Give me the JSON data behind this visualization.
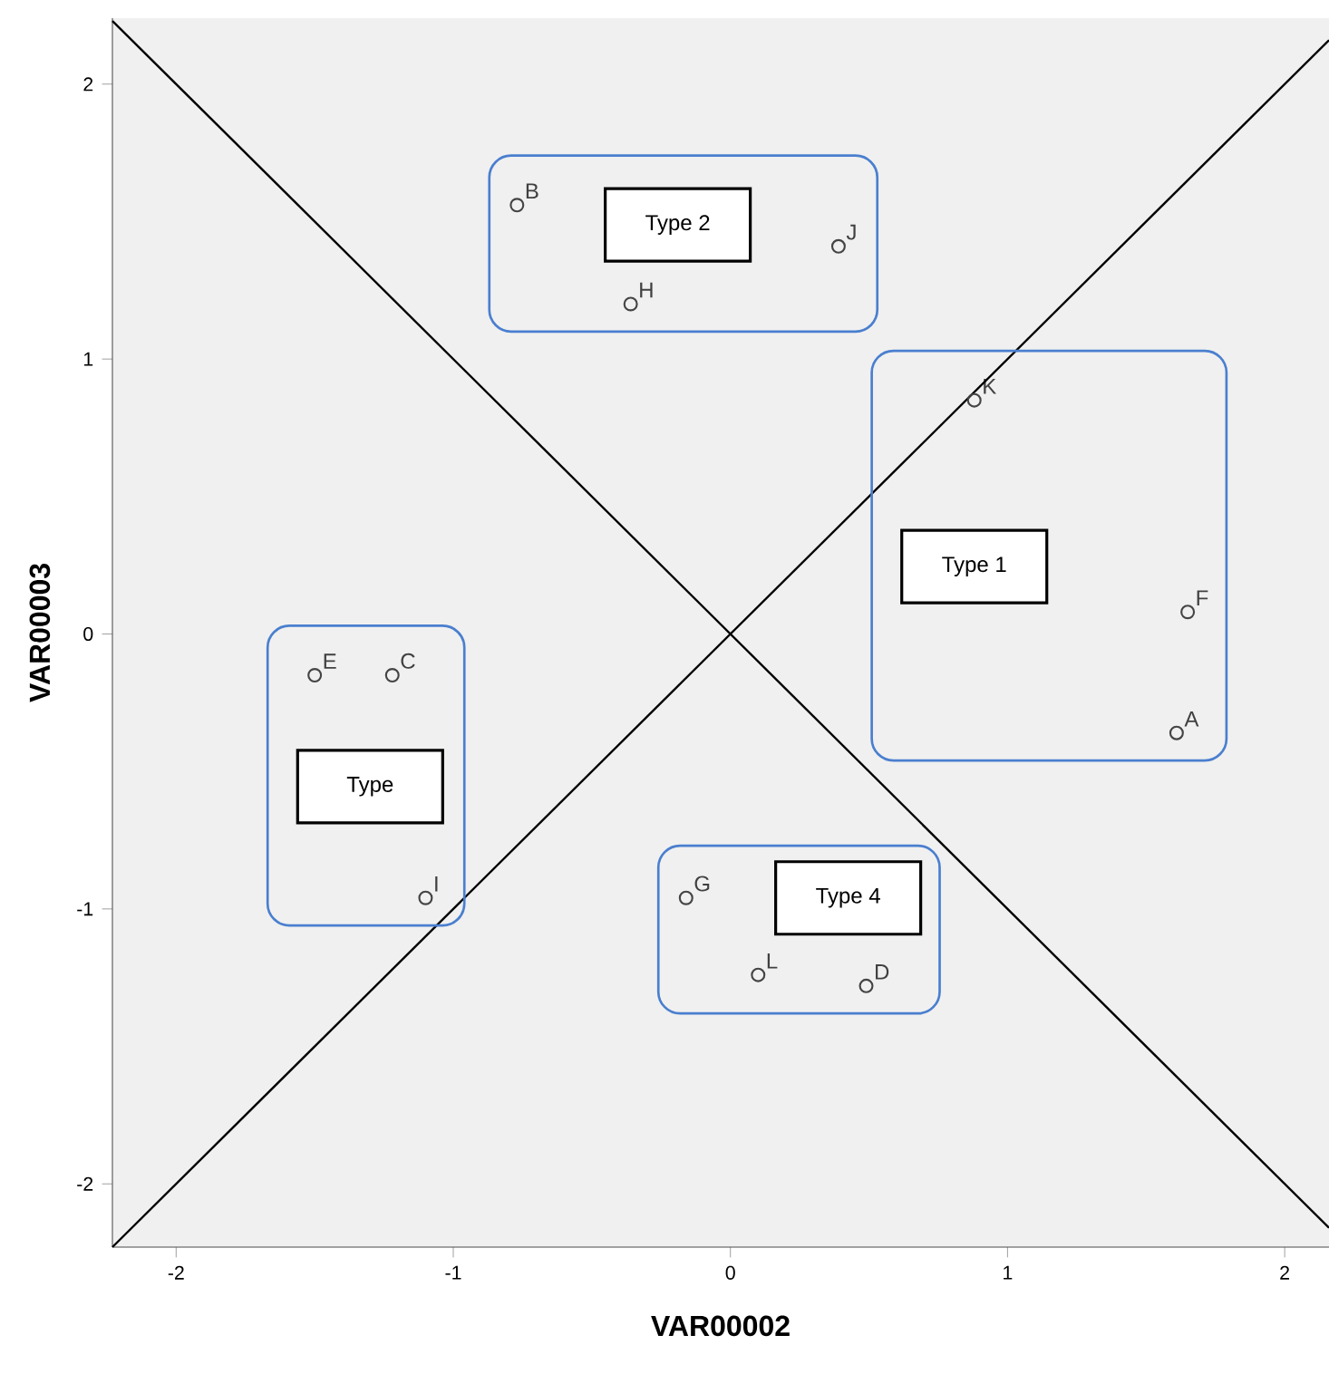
{
  "chart_data": {
    "type": "scatter",
    "xlabel": "VAR00002",
    "ylabel": "VAR00003",
    "xlim": [
      -2.23,
      2.16
    ],
    "ylim": [
      -2.23,
      2.24
    ],
    "xticks": [
      -2,
      -1,
      0,
      1,
      2
    ],
    "yticks": [
      -2,
      -1,
      0,
      1,
      2
    ],
    "marker": "circle",
    "grid": false,
    "series": [
      {
        "color": "#444444",
        "x": [
          1.61,
          -0.77,
          -1.22,
          0.49,
          -1.5,
          1.65,
          -0.16,
          -0.36,
          -1.1,
          0.39,
          0.88,
          0.1
        ],
        "values": [
          -0.36,
          1.56,
          -0.15,
          -1.28,
          -0.15,
          0.08,
          -0.96,
          1.2,
          -0.96,
          1.41,
          0.85,
          -1.24
        ],
        "value_labels": [
          "A",
          "B",
          "C",
          "D",
          "E",
          "F",
          "G",
          "H",
          "I",
          "J",
          "K",
          "L"
        ]
      },
      {
        "type": "line",
        "color": "#000000",
        "marker": "none",
        "x": [
          -2.23,
          2.16
        ],
        "values": [
          -2.23,
          2.16
        ]
      },
      {
        "type": "line",
        "color": "#000000",
        "marker": "none",
        "x": [
          -2.23,
          2.16
        ],
        "values": [
          2.23,
          -2.16
        ]
      }
    ],
    "annotations": [
      "Type 1",
      "Type 2",
      "Type",
      "Type 4"
    ]
  }
}
